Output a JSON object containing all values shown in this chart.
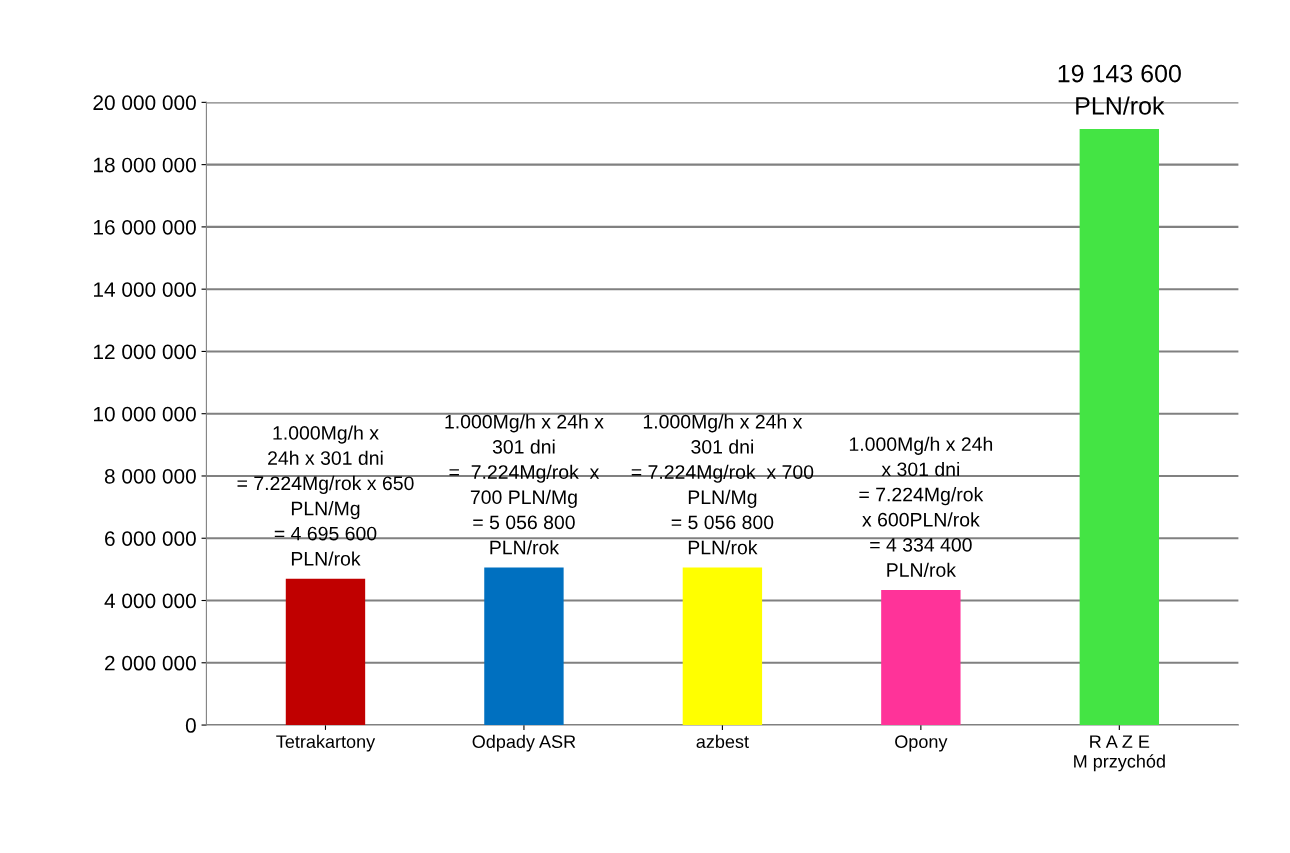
{
  "chart_data": {
    "type": "bar",
    "categories": [
      "Tetrakartony",
      "Odpady ASR",
      "azbest",
      "Opony",
      "R A Z E\nM przychód"
    ],
    "values": [
      4695600,
      5056800,
      5056800,
      4334400,
      19143600
    ],
    "colors": [
      "#c00000",
      "#0070c0",
      "#ffff00",
      "#ff3399",
      "#44e444"
    ],
    "value_labels": [
      "1.000Mg/h x\n24h x 301 dni\n= 7.224Mg/rok x 650\nPLN/Mg\n= 4 695 600\nPLN/rok",
      "1.000Mg/h x 24h x\n301 dni\n=  7.224Mg/rok  x\n700 PLN/Mg\n= 5 056 800\nPLN/rok",
      "1.000Mg/h x 24h x\n301 dni\n= 7.224Mg/rok  x 700\nPLN/Mg\n= 5 056 800\nPLN/rok",
      "1.000Mg/h x 24h\nx 301 dni\n= 7.224Mg/rok\nx 600PLN/rok\n= 4 334 400\nPLN/rok",
      "19 143 600\nPLN/rok"
    ],
    "ylim": [
      0,
      20000000
    ],
    "yticks": [
      {
        "value": 0,
        "label": "0"
      },
      {
        "value": 2000000,
        "label": "2 000 000"
      },
      {
        "value": 4000000,
        "label": "4 000 000"
      },
      {
        "value": 6000000,
        "label": "6 000 000"
      },
      {
        "value": 8000000,
        "label": "8 000 000"
      },
      {
        "value": 10000000,
        "label": "10 000 000"
      },
      {
        "value": 12000000,
        "label": "12 000 000"
      },
      {
        "value": 14000000,
        "label": "14 000 000"
      },
      {
        "value": 16000000,
        "label": "16 000 000"
      },
      {
        "value": 18000000,
        "label": "18 000 000"
      },
      {
        "value": 20000000,
        "label": "20 000 000"
      }
    ],
    "grid": "y",
    "legend": false
  }
}
